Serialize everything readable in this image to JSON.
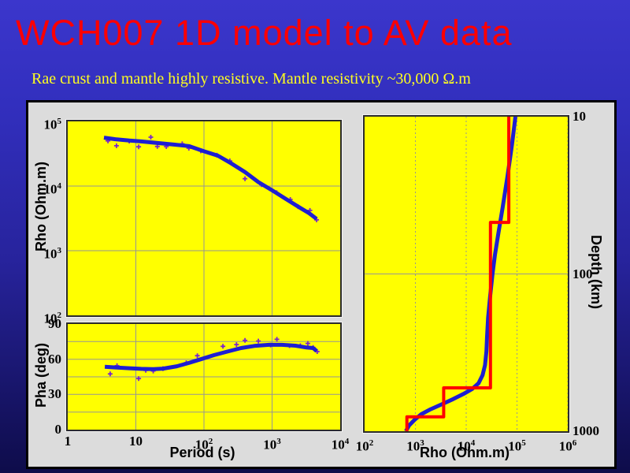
{
  "slide": {
    "title": "WCH007 1D model to AV data",
    "subtitle": "Rae crust and mantle highly resistive. Mantle resistivity ~30,000 Ω.m"
  },
  "colors": {
    "title": "#ff0000",
    "subtitle": "#ffff1f",
    "bg_top": "#3b36cc",
    "bg_mid": "#27239c",
    "bg_bottom": "#0e0c4a",
    "panel_bg": "#dcdcdc",
    "panel_border": "#000000",
    "plot_bg": "#ffff00",
    "plot_border": "#2b2b2b",
    "grid": "#969696",
    "model_line": "#1e1ed2",
    "data_marker": "#7a24cc",
    "layered_model": "#ff0000"
  },
  "chart_data": [
    {
      "id": "rho_plot",
      "type": "line",
      "ylabel": "Rho (Ohm.m)",
      "x": {
        "scale": "log",
        "min": 1,
        "max": 10000
      },
      "y": {
        "scale": "log",
        "min": 100000,
        "max": 100
      },
      "x_grid": [
        10,
        100,
        1000
      ],
      "y_grid": [
        10000,
        1000
      ],
      "y_ticks": [
        {
          "v": 100000,
          "label": "10^5"
        },
        {
          "v": 10000,
          "label": "10^4"
        },
        {
          "v": 1000,
          "label": "10^3"
        },
        {
          "v": 100,
          "label": "10^2"
        }
      ],
      "ticks_side": "left",
      "series": [
        {
          "name": "observed-rho-points",
          "kind": "markers",
          "color": "#7a24cc",
          "points": [
            [
              3.9,
              50000
            ],
            [
              5.2,
              42000
            ],
            [
              8,
              49500
            ],
            [
              11,
              40500
            ],
            [
              16.6,
              57000
            ],
            [
              20.7,
              41000
            ],
            [
              28,
              40700
            ],
            [
              48,
              45000
            ],
            [
              60,
              38500
            ],
            [
              90,
              35000
            ],
            [
              155,
              30000
            ],
            [
              240,
              24500
            ],
            [
              400,
              13000
            ],
            [
              700,
              10500
            ],
            [
              1170,
              7900
            ],
            [
              1850,
              6200
            ],
            [
              2400,
              4800
            ],
            [
              3600,
              4200
            ],
            [
              4500,
              3000
            ]
          ]
        },
        {
          "name": "model-response-rho-curve",
          "kind": "line",
          "color": "#1e1ed2",
          "width": 5,
          "points": [
            [
              3.4,
              56000
            ],
            [
              5,
              53000
            ],
            [
              8,
              50500
            ],
            [
              12,
              49000
            ],
            [
              20,
              46500
            ],
            [
              35,
              44000
            ],
            [
              60,
              41500
            ],
            [
              100,
              34500
            ],
            [
              160,
              29500
            ],
            [
              250,
              22500
            ],
            [
              400,
              16500
            ],
            [
              630,
              11500
            ],
            [
              1000,
              8600
            ],
            [
              1600,
              6300
            ],
            [
              2500,
              4700
            ],
            [
              3500,
              3800
            ],
            [
              4500,
              3100
            ]
          ]
        }
      ]
    },
    {
      "id": "pha_plot",
      "type": "line",
      "ylabel": "Pha (deg)",
      "xlabel": "Period (s)",
      "x": {
        "scale": "log",
        "min": 1,
        "max": 10000
      },
      "y": {
        "scale": "linear",
        "min": 90,
        "max": 0
      },
      "x_grid": [
        10,
        100,
        1000
      ],
      "y_grid": [
        75,
        60,
        45,
        30,
        15
      ],
      "y_ticks": [
        {
          "v": 90,
          "label": "90"
        },
        {
          "v": 60,
          "label": "60"
        },
        {
          "v": 30,
          "label": "30"
        },
        {
          "v": 0,
          "label": "0"
        }
      ],
      "x_ticks": [
        {
          "v": 1,
          "label": "1"
        },
        {
          "v": 10,
          "label": "10"
        },
        {
          "v": 100,
          "label": "10^2"
        },
        {
          "v": 1000,
          "label": "10^3"
        },
        {
          "v": 10000,
          "label": "10^4"
        }
      ],
      "ticks_side": "left",
      "series": [
        {
          "name": "observed-phase-points",
          "kind": "markers",
          "color": "#7a24cc",
          "points": [
            [
              4.2,
              47.5
            ],
            [
              5.3,
              54.5
            ],
            [
              11,
              43.5
            ],
            [
              14,
              50.5
            ],
            [
              18,
              50
            ],
            [
              25,
              52
            ],
            [
              55,
              57
            ],
            [
              80,
              63
            ],
            [
              190,
              71
            ],
            [
              300,
              72.5
            ],
            [
              400,
              76
            ],
            [
              630,
              75.5
            ],
            [
              950,
              72
            ],
            [
              1175,
              77
            ],
            [
              1800,
              71.5
            ],
            [
              2600,
              71.5
            ],
            [
              3350,
              73.5
            ],
            [
              4000,
              70
            ],
            [
              4600,
              66.5
            ]
          ]
        },
        {
          "name": "model-response-phase-curve",
          "kind": "line",
          "color": "#1e1ed2",
          "width": 5,
          "points": [
            [
              3.5,
              53.5
            ],
            [
              5,
              53
            ],
            [
              8,
              52.3
            ],
            [
              12,
              51.8
            ],
            [
              18,
              51.5
            ],
            [
              25,
              52
            ],
            [
              40,
              54
            ],
            [
              60,
              56.8
            ],
            [
              90,
              60
            ],
            [
              140,
              63.5
            ],
            [
              220,
              66.5
            ],
            [
              350,
              69.5
            ],
            [
              550,
              71.3
            ],
            [
              900,
              72.3
            ],
            [
              1400,
              72.3
            ],
            [
              2200,
              71.5
            ],
            [
              3200,
              70
            ],
            [
              4000,
              69.5
            ],
            [
              4500,
              67
            ]
          ]
        }
      ]
    },
    {
      "id": "model_plot",
      "type": "line",
      "xlabel": "Rho (Ohm.m)",
      "ylabel_right": "Depth (km)",
      "x": {
        "scale": "log",
        "min": 100,
        "max": 1000000
      },
      "y": {
        "scale": "log",
        "min": 10,
        "max": 1000
      },
      "x_grid": [
        1000,
        10000,
        100000,
        1000000
      ],
      "x_grid_dash": "2 3",
      "y_grid": [
        100
      ],
      "x_ticks": [
        {
          "v": 100,
          "label": "10^2"
        },
        {
          "v": 1000,
          "label": "10^3"
        },
        {
          "v": 10000,
          "label": "10^4"
        },
        {
          "v": 100000,
          "label": "10^5"
        },
        {
          "v": 1000000,
          "label": "10^6"
        }
      ],
      "y_ticks": [
        {
          "v": 10,
          "label": "10"
        },
        {
          "v": 100,
          "label": "100"
        },
        {
          "v": 1000,
          "label": "1000"
        }
      ],
      "ticks_side": "right",
      "series": [
        {
          "name": "smooth-inversion-model",
          "kind": "line",
          "color": "#1e1ed2",
          "width": 5,
          "points": [
            [
              93000,
              10
            ],
            [
              80000,
              15
            ],
            [
              65000,
              24
            ],
            [
              52000,
              38
            ],
            [
              43000,
              55
            ],
            [
              37000,
              75
            ],
            [
              33000,
              100
            ],
            [
              29500,
              140
            ],
            [
              27000,
              190
            ],
            [
              25800,
              250
            ],
            [
              25000,
              310
            ],
            [
              23500,
              380
            ],
            [
              21000,
              440
            ],
            [
              17500,
              495
            ],
            [
              13000,
              540
            ],
            [
              8800,
              580
            ],
            [
              5500,
              625
            ],
            [
              3300,
              675
            ],
            [
              2000,
              725
            ],
            [
              1300,
              780
            ],
            [
              950,
              850
            ],
            [
              750,
              920
            ],
            [
              650,
              1000
            ]
          ]
        },
        {
          "name": "layered-1d-model",
          "kind": "line",
          "color": "#ff0000",
          "width": 4,
          "points": [
            [
              69000,
              10
            ],
            [
              69000,
              47
            ],
            [
              30000,
              47
            ],
            [
              30000,
              530
            ],
            [
              3600,
              530
            ],
            [
              3600,
              810
            ],
            [
              680,
              810
            ],
            [
              680,
              1000
            ]
          ]
        }
      ]
    }
  ]
}
